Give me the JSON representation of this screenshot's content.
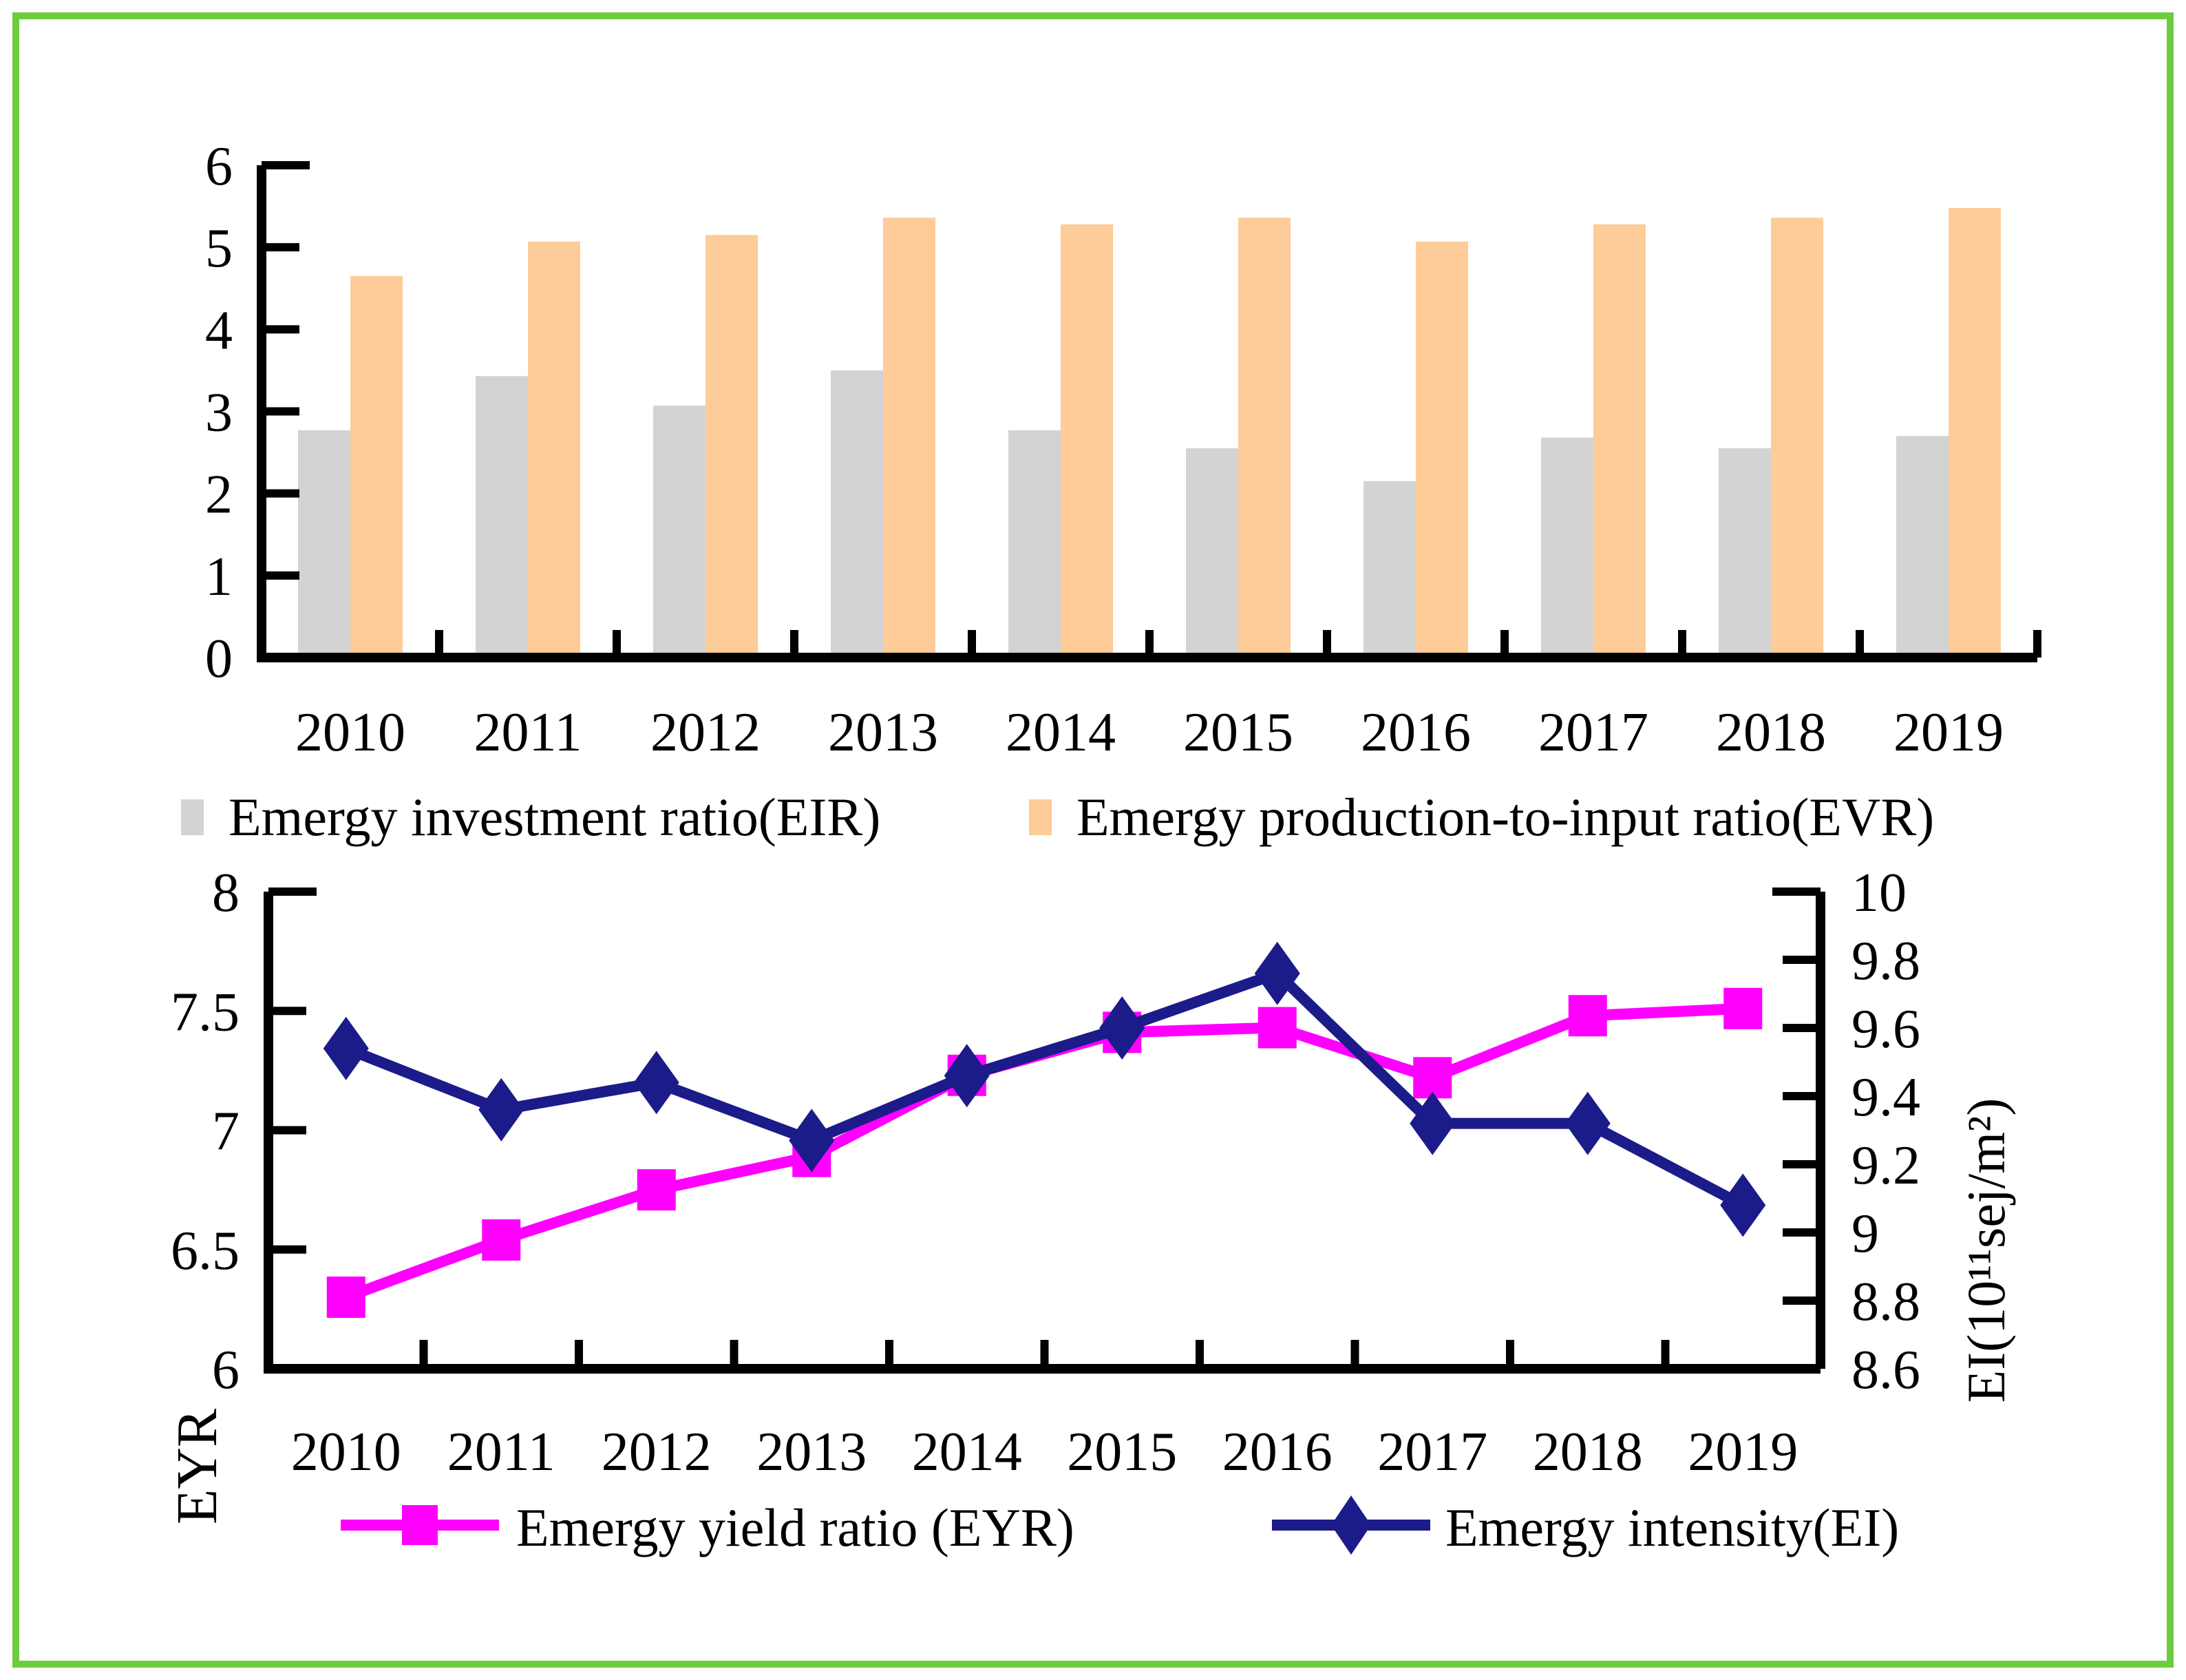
{
  "figure": {
    "border_color": "#6CCE3E",
    "background": "#FFFFFF"
  },
  "chart_data": [
    {
      "name": "emergy-ratio-bar-chart",
      "type": "bar",
      "title": "",
      "xlabel": "",
      "ylabel": "",
      "categories": [
        "2010",
        "2011",
        "2012",
        "2013",
        "2014",
        "2015",
        "2016",
        "2017",
        "2018",
        "2019"
      ],
      "series": [
        {
          "name": "Emergy investment ratio(EIR)",
          "color": "#D3D3D3",
          "values": [
            2.77,
            3.43,
            3.07,
            3.5,
            2.77,
            2.55,
            2.15,
            2.68,
            2.55,
            2.7
          ]
        },
        {
          "name": "Emergy production-to-input ratio(EVR)",
          "color": "#FDCC99",
          "values": [
            4.65,
            5.07,
            5.15,
            5.36,
            5.28,
            5.36,
            5.07,
            5.28,
            5.36,
            5.48
          ]
        }
      ],
      "ylim": [
        0,
        6
      ],
      "yticks": [
        0,
        1,
        2,
        3,
        4,
        5,
        6
      ],
      "ytick_labels": [
        "0",
        "1",
        "2",
        "3",
        "4",
        "5",
        "6"
      ],
      "grid": false,
      "legend_position": "bottom"
    },
    {
      "name": "emergy-yield-intensity-line-chart",
      "type": "line",
      "title": "",
      "categories": [
        "2010",
        "2011",
        "2012",
        "2013",
        "2014",
        "2015",
        "2016",
        "2017",
        "2018",
        "2019"
      ],
      "series": [
        {
          "name": "Emergy yield ratio (EYR)",
          "color": "#FF00FF",
          "marker": "square",
          "axis": "left",
          "values": [
            6.3,
            6.54,
            6.75,
            6.89,
            7.23,
            7.41,
            7.43,
            7.22,
            7.48,
            7.51
          ]
        },
        {
          "name": "Emergy intensity(EI)",
          "color": "#1B1B8A",
          "marker": "diamond",
          "axis": "right",
          "values": [
            9.54,
            9.36,
            9.44,
            9.27,
            9.46,
            9.6,
            9.76,
            9.32,
            9.32,
            9.08
          ]
        }
      ],
      "left_axis": {
        "label": "EYR",
        "lim": [
          6,
          8
        ],
        "ticks": [
          6,
          6.5,
          7,
          7.5,
          8
        ],
        "tick_labels": [
          "6",
          "6.5",
          "7",
          "7.5",
          "8"
        ]
      },
      "right_axis": {
        "label": "EI(10¹¹sej/m²)",
        "lim": [
          8.6,
          10
        ],
        "ticks": [
          8.6,
          8.8,
          9,
          9.2,
          9.4,
          9.6,
          9.8,
          10
        ],
        "tick_labels": [
          "8.6",
          "8.8",
          "9",
          "9.2",
          "9.4",
          "9.6",
          "9.8",
          "10"
        ]
      },
      "grid": false,
      "legend_position": "bottom"
    }
  ]
}
